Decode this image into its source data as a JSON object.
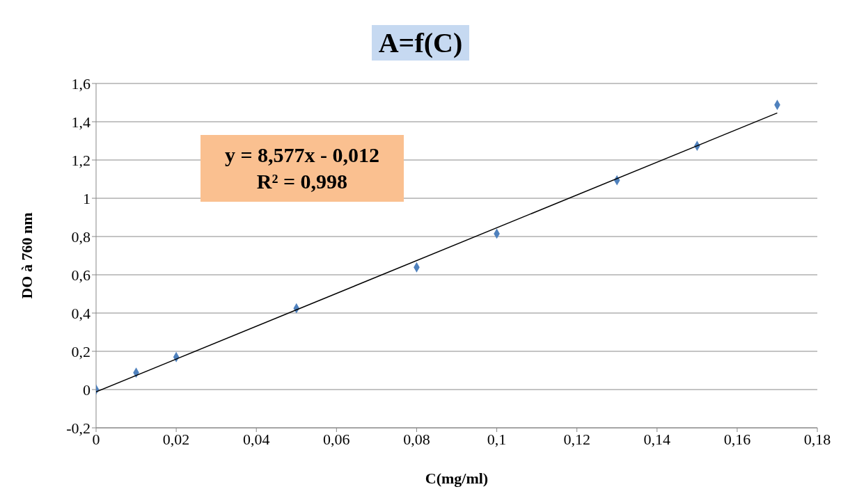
{
  "chart_data": {
    "type": "scatter",
    "title": "A=f(C)",
    "xlabel": "C(mg/ml)",
    "ylabel": "DO  à 760 nm",
    "annotations": [
      "y = 8,577x - 0,012",
      "R² = 0,998"
    ],
    "series": [
      {
        "color": "#4f81bd",
        "marker": "diamond",
        "x": [
          0,
          0.01,
          0.02,
          0.05,
          0.08,
          0.1,
          0.13,
          0.15,
          0.17
        ],
        "values": [
          0,
          0.088,
          0.17,
          0.425,
          0.639,
          0.815,
          1.094,
          1.274,
          1.488
        ]
      },
      {
        "type": "line",
        "color": "#000000",
        "marker": "none",
        "x": [
          0,
          0.17
        ],
        "values": [
          -0.012,
          1.446
        ]
      }
    ],
    "xlim": [
      0,
      0.18
    ],
    "xticks": [
      0,
      {
        "value": 0.02,
        "label": "0,02"
      },
      {
        "value": 0.04,
        "label": "0,04"
      },
      {
        "value": 0.06,
        "label": "0,06"
      },
      {
        "value": 0.08,
        "label": "0,08"
      },
      {
        "value": 0.1,
        "label": "0,1"
      },
      {
        "value": 0.12,
        "label": "0,12"
      },
      {
        "value": 0.14,
        "label": "0,14"
      },
      {
        "value": 0.16,
        "label": "0,16"
      },
      {
        "value": 0.18,
        "label": "0,18"
      }
    ],
    "ylim": [
      -0.2,
      1.6
    ],
    "yticks": [
      {
        "value": -0.2,
        "label": "-0,2"
      },
      0,
      {
        "value": 0.2,
        "label": "0,2"
      },
      {
        "value": 0.4,
        "label": "0,4"
      },
      {
        "value": 0.6,
        "label": "0,6"
      },
      {
        "value": 0.8,
        "label": "0,8"
      },
      1,
      {
        "value": 1.2,
        "label": "1,2"
      },
      {
        "value": 1.4,
        "label": "1,4"
      },
      {
        "value": 1.6,
        "label": "1,6"
      }
    ],
    "grid": "y"
  }
}
